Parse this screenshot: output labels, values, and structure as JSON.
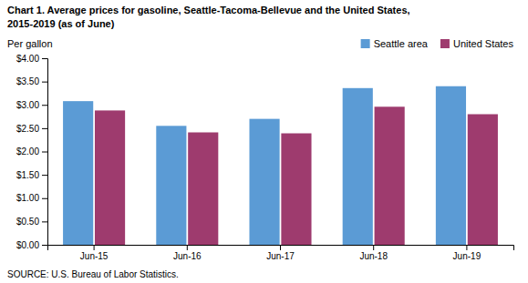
{
  "chart_data": {
    "type": "bar",
    "title": "Chart 1. Average prices for gasoline, Seattle-Tacoma-Bellevue and the United States,",
    "subtitle": "2015-2019  (as of June)",
    "y_label": "Per gallon",
    "annotations": [
      "SOURCE: U.S. Bureau of Labor Statistics."
    ],
    "categories": [
      "Jun-15",
      "Jun-16",
      "Jun-17",
      "Jun-18",
      "Jun-19"
    ],
    "series": [
      {
        "name": "Seattle area",
        "color": "#5B9BD5",
        "values": [
          3.08,
          2.55,
          2.7,
          3.36,
          3.4
        ]
      },
      {
        "name": "United States",
        "color": "#9E3B6E",
        "values": [
          2.88,
          2.41,
          2.39,
          2.96,
          2.8
        ]
      }
    ],
    "ylim": [
      0.0,
      4.0
    ],
    "yticks": [
      {
        "value": 0.0,
        "label": "$0.00"
      },
      {
        "value": 0.5,
        "label": "$0.50"
      },
      {
        "value": 1.0,
        "label": "$1.00"
      },
      {
        "value": 1.5,
        "label": "$1.50"
      },
      {
        "value": 2.0,
        "label": "$2.00"
      },
      {
        "value": 2.5,
        "label": "$2.50"
      },
      {
        "value": 3.0,
        "label": "$3.00"
      },
      {
        "value": 3.5,
        "label": "$3.50"
      },
      {
        "value": 4.0,
        "label": "$4.00"
      }
    ],
    "grid": false,
    "legend": "upper right"
  }
}
